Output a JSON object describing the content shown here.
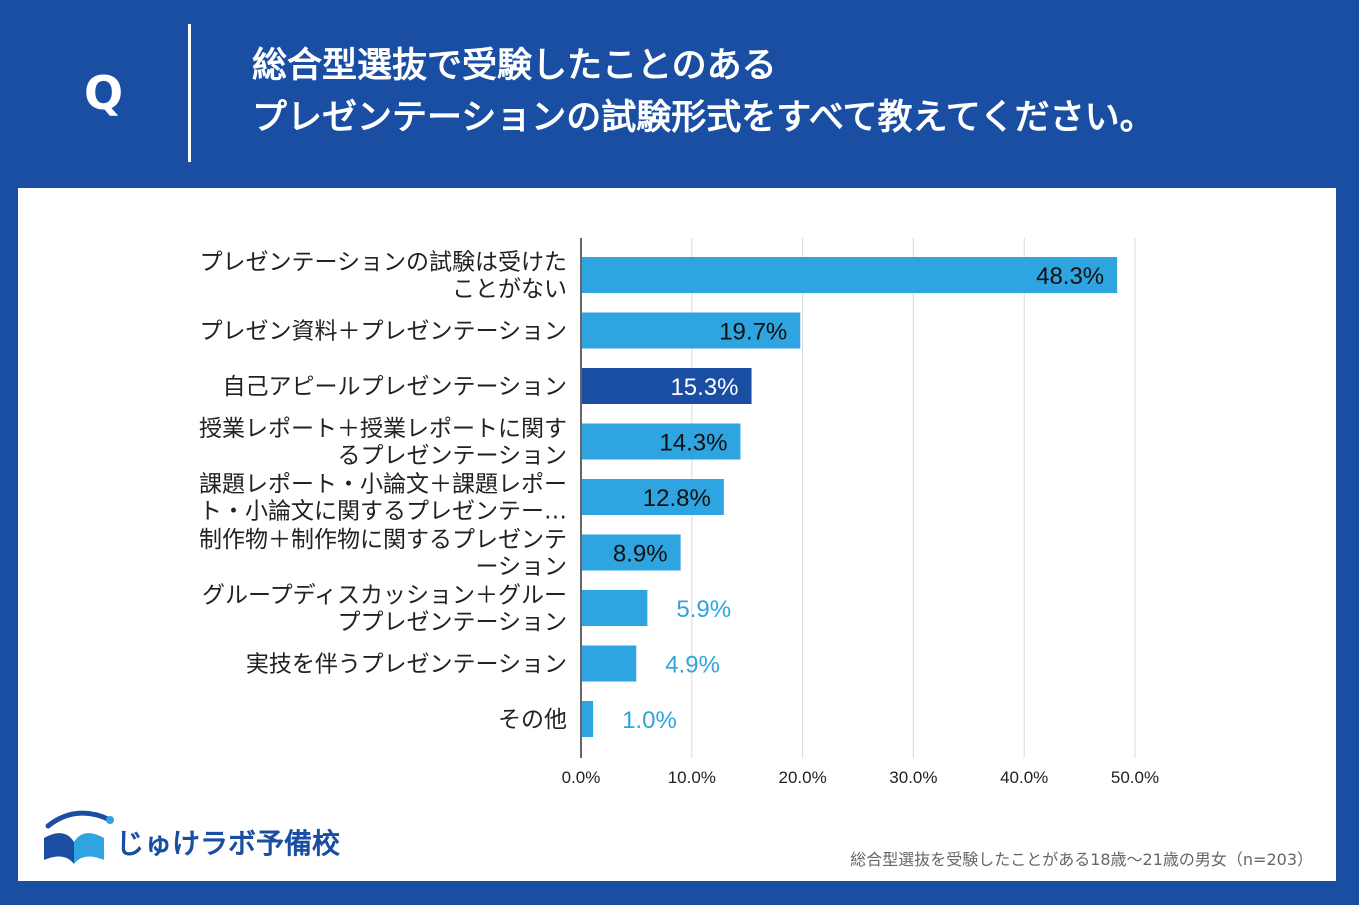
{
  "header": {
    "q_letter": "Q",
    "title_line1": "総合型選抜で受験したことのある",
    "title_line2": "プレゼンテーションの試験形式をすべて教えてください。"
  },
  "brand": {
    "logo_text": "じゅけラボ予備校"
  },
  "footnote": "総合型選抜を受験したことがある18歳〜21歳の男女（n=203）",
  "colors": {
    "background": "#1a4ea3",
    "bar": "#2ea4e0",
    "bar_highlight": "#1a4ea3",
    "value_outside": "#2ea4e0",
    "grid": "#d9d9d9"
  },
  "chart_data": {
    "type": "bar",
    "orientation": "horizontal",
    "title": "",
    "xlabel": "",
    "ylabel": "",
    "xlim": [
      0,
      50
    ],
    "grid": true,
    "ticks": [
      "0.0%",
      "10.0%",
      "20.0%",
      "30.0%",
      "40.0%",
      "50.0%"
    ],
    "tick_values": [
      0,
      10,
      20,
      30,
      40,
      50
    ],
    "categories": [
      [
        "プレゼンテーションの試験は受けた",
        "ことがない"
      ],
      [
        "プレゼン資料＋プレゼンテーション"
      ],
      [
        "自己アピールプレゼンテーション"
      ],
      [
        "授業レポート＋授業レポートに関す",
        "るプレゼンテーション"
      ],
      [
        "課題レポート・小論文＋課題レポー",
        "ト・小論文に関するプレゼンテー…"
      ],
      [
        "制作物＋制作物に関するプレゼンテ",
        "ーション"
      ],
      [
        "グループディスカッション＋グルー",
        "ププレゼンテーション"
      ],
      [
        "実技を伴うプレゼンテーション"
      ],
      [
        "その他"
      ]
    ],
    "values": [
      48.3,
      19.7,
      15.3,
      14.3,
      12.8,
      8.9,
      5.9,
      4.9,
      1.0
    ],
    "value_labels": [
      "48.3%",
      "19.7%",
      "15.3%",
      "14.3%",
      "12.8%",
      "8.9%",
      "5.9%",
      "4.9%",
      "1.0%"
    ],
    "highlight_index": 2
  }
}
